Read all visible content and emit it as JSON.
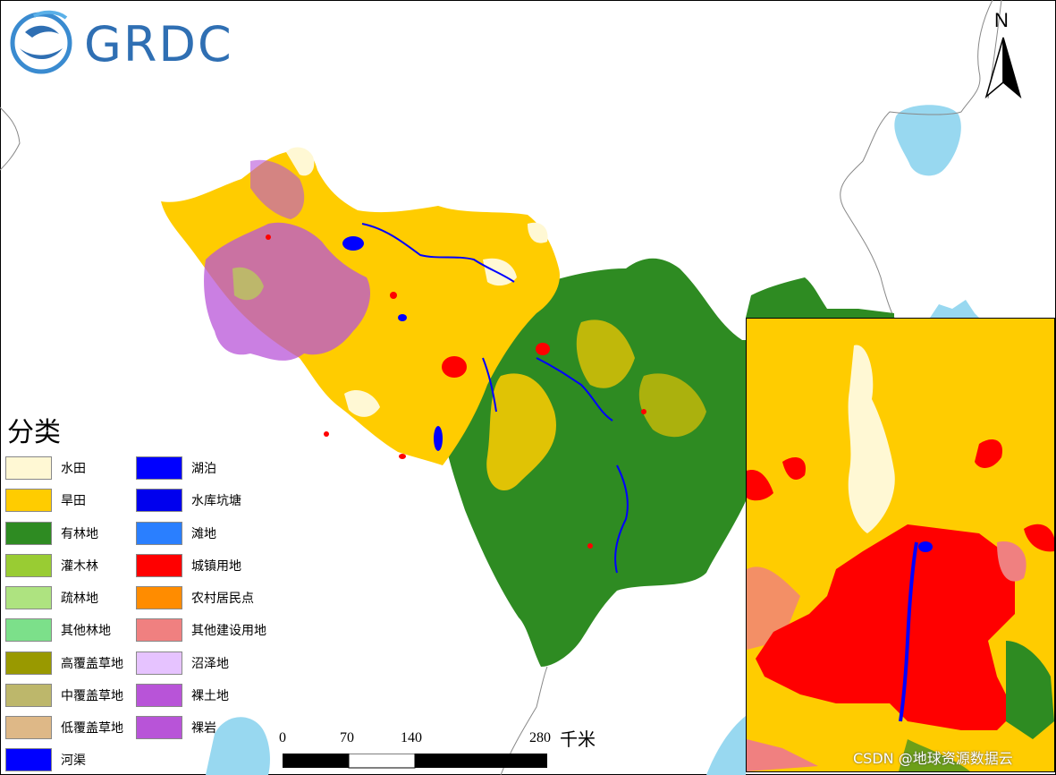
{
  "logo": {
    "text": "GRDC"
  },
  "north_arrow": {
    "label": "N"
  },
  "legend": {
    "title": "分类",
    "items": [
      {
        "label": "水田",
        "color": "#fff8d4"
      },
      {
        "label": "旱田",
        "color": "#ffcc00"
      },
      {
        "label": "有林地",
        "color": "#2e8b22"
      },
      {
        "label": "灌木林",
        "color": "#99cc33"
      },
      {
        "label": "疏林地",
        "color": "#aee380"
      },
      {
        "label": "其他林地",
        "color": "#7ce08a"
      },
      {
        "label": "高覆盖草地",
        "color": "#999900"
      },
      {
        "label": "中覆盖草地",
        "color": "#bdb76b"
      },
      {
        "label": "低覆盖草地",
        "color": "#deb887"
      },
      {
        "label": "河渠",
        "color": "#0000ff"
      },
      {
        "label": "湖泊",
        "color": "#0000ff"
      },
      {
        "label": "水库坑塘",
        "color": "#0000ee"
      },
      {
        "label": "滩地",
        "color": "#2a7fff"
      },
      {
        "label": "城镇用地",
        "color": "#ff0000"
      },
      {
        "label": "农村居民点",
        "color": "#ff8c00"
      },
      {
        "label": "其他建设用地",
        "color": "#f08080"
      },
      {
        "label": "沼泽地",
        "color": "#e6c3ff"
      },
      {
        "label": "裸土地",
        "color": "#b854d8"
      },
      {
        "label": "裸岩",
        "color": "#b854d8"
      }
    ]
  },
  "scale_bar": {
    "ticks": [
      "0",
      "70",
      "140",
      "280"
    ],
    "unit": "千米"
  },
  "watermark": "CSDN @地球资源数据云",
  "colors": {
    "water": "#98d8f0",
    "boundary": "#888888",
    "frame": "#000000"
  }
}
